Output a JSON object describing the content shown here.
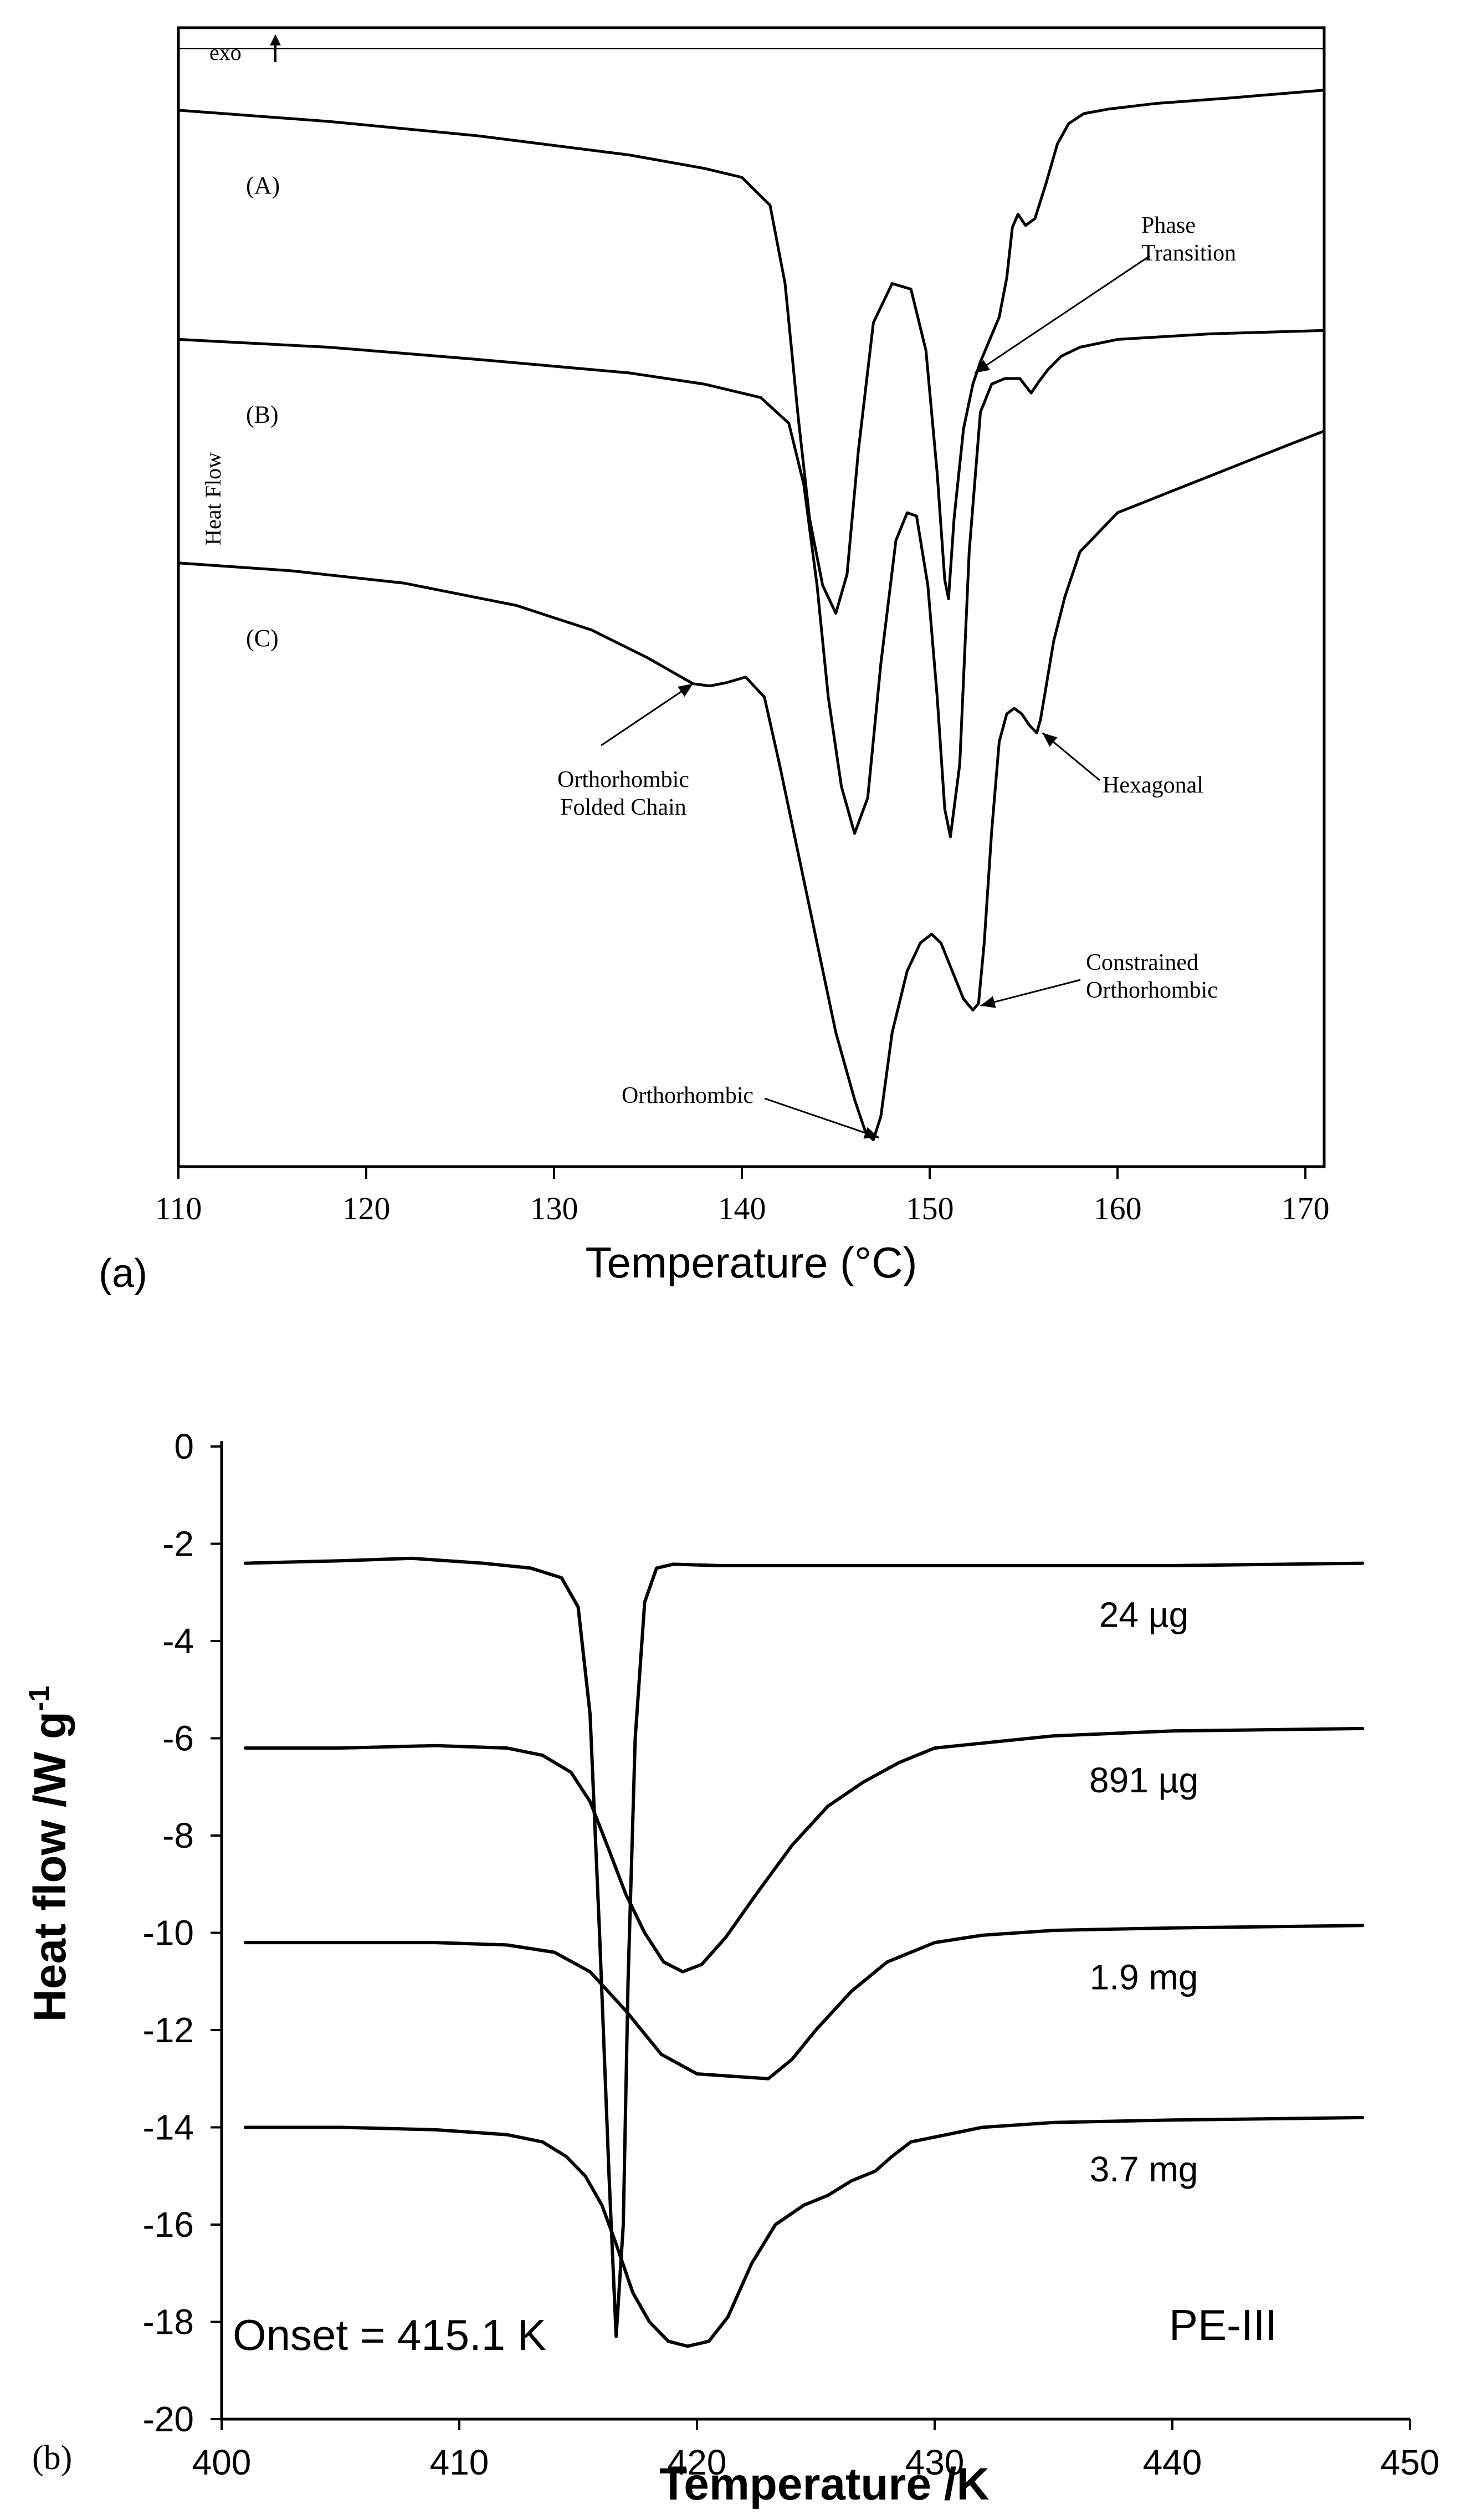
{
  "chart_data": [
    {
      "panel_label": "(a)",
      "type": "line",
      "xlabel": "Temperature (°C)",
      "ylabel": "Heat Flow",
      "direction_label": "exo",
      "xlim": [
        110,
        171
      ],
      "ylim": [
        0,
        100
      ],
      "xticks": [
        110,
        120,
        130,
        140,
        150,
        160,
        170
      ],
      "grid": false,
      "series": [
        {
          "name": "(A)",
          "x": [
            110,
            118,
            126,
            134,
            138,
            140,
            141.5,
            142.3,
            143,
            143.6,
            144.3,
            145,
            145.6,
            146.2,
            147,
            148,
            149,
            149.8,
            150.4,
            150.8,
            151,
            151.3,
            151.8,
            152.3,
            152.7,
            153.2,
            153.7,
            154.1,
            154.4,
            154.7,
            155.1,
            155.6,
            156.2,
            156.8,
            157.4,
            158.2,
            159.5,
            162,
            166,
            171
          ],
          "y": [
            94.5,
            93.5,
            92.2,
            90.5,
            89.3,
            88.5,
            86.0,
            79.0,
            67.0,
            58.0,
            52.0,
            49.5,
            53.0,
            64.0,
            75.5,
            79.0,
            78.5,
            73.0,
            62.0,
            52.5,
            50.8,
            58.0,
            66.0,
            70.0,
            72.0,
            74.0,
            76.0,
            79.5,
            84.0,
            85.2,
            84.2,
            84.8,
            88.0,
            91.5,
            93.3,
            94.2,
            94.6,
            95.1,
            95.6,
            96.3
          ]
        },
        {
          "name": "(B)",
          "x": [
            110,
            118,
            126,
            134,
            138,
            141,
            142.5,
            143.3,
            144,
            144.6,
            145.3,
            146,
            146.7,
            147.4,
            148.2,
            148.8,
            149.3,
            149.9,
            150.4,
            150.8,
            151.1,
            151.6,
            152.1,
            152.7,
            153.3,
            154,
            154.8,
            155.4,
            155.8,
            156.3,
            157,
            158,
            160,
            165,
            171
          ],
          "y": [
            74.0,
            73.3,
            72.2,
            71.0,
            70.0,
            68.8,
            66.5,
            61.0,
            52.0,
            42.0,
            34.0,
            29.8,
            33.0,
            45.0,
            56.0,
            58.5,
            58.2,
            52.0,
            42.0,
            32.0,
            29.5,
            36.0,
            55.0,
            67.5,
            70.0,
            70.5,
            70.5,
            69.2,
            70.2,
            71.3,
            72.5,
            73.3,
            74.0,
            74.5,
            74.8
          ]
        },
        {
          "name": "(C)",
          "x": [
            110,
            116,
            122,
            128,
            132,
            135,
            137.4,
            138.3,
            139.2,
            140.2,
            141.2,
            142,
            143,
            144,
            145,
            146,
            146.6,
            147,
            147.4,
            148,
            148.8,
            149.5,
            150.1,
            150.6,
            151.2,
            151.8,
            152.3,
            152.6,
            152.9,
            153.3,
            153.7,
            154.1,
            154.5,
            154.9,
            155.3,
            155.7,
            155.9,
            156.1,
            156.6,
            157.2,
            158,
            160,
            163,
            166,
            169,
            171
          ],
          "y": [
            54.0,
            53.3,
            52.2,
            50.2,
            48.0,
            45.5,
            43.2,
            43.0,
            43.3,
            43.8,
            42.0,
            36.0,
            28.0,
            20.0,
            12.0,
            6.0,
            3.0,
            2.4,
            4.5,
            12.0,
            17.5,
            20.0,
            20.8,
            20.0,
            17.5,
            15.0,
            14.0,
            14.6,
            20.0,
            30.0,
            38.0,
            40.5,
            41.0,
            40.5,
            39.5,
            38.8,
            40.0,
            42.0,
            47.0,
            51.0,
            55.0,
            58.5,
            60.5,
            62.5,
            64.5,
            65.8
          ]
        }
      ],
      "annotations": [
        {
          "text_lines": [
            "Phase",
            "Transition"
          ],
          "target": [
            152.4,
            71.0
          ]
        },
        {
          "text_lines": [
            "Hexagonal"
          ],
          "target": [
            156.0,
            38.8
          ]
        },
        {
          "text_lines": [
            "Orthorhombic",
            "Folded Chain"
          ],
          "target": [
            137.4,
            43.2
          ]
        },
        {
          "text_lines": [
            "Constrained",
            "Orthorhombic"
          ],
          "target": [
            152.7,
            14.4
          ]
        },
        {
          "text_lines": [
            "Orthorhombic"
          ],
          "target": [
            147.3,
            2.6
          ]
        }
      ]
    },
    {
      "panel_label": "(b)",
      "type": "line",
      "xlabel": "Temperature /K",
      "ylabel": "Heat flow /W g",
      "ylabel_superscript": "-1",
      "xlim": [
        400,
        450
      ],
      "ylim": [
        -20,
        0
      ],
      "xticks": [
        400,
        410,
        420,
        430,
        440,
        450
      ],
      "yticks": [
        0,
        -2,
        -4,
        -6,
        -8,
        -10,
        -12,
        -14,
        -16,
        -18,
        -20
      ],
      "grid": false,
      "annotation_text": "Onset = 415.1 K",
      "sample_label": "PE-III",
      "series": [
        {
          "name": "24 µg",
          "x": [
            401,
            405,
            408,
            411,
            413,
            414.3,
            415,
            415.5,
            415.9,
            416.3,
            416.6,
            416.9,
            417.1,
            417.4,
            417.8,
            418.3,
            419,
            421,
            425,
            430,
            440,
            448
          ],
          "y": [
            -2.4,
            -2.35,
            -2.3,
            -2.4,
            -2.5,
            -2.7,
            -3.3,
            -5.5,
            -10.0,
            -15.0,
            -18.3,
            -16.0,
            -11.0,
            -6.0,
            -3.2,
            -2.5,
            -2.42,
            -2.45,
            -2.45,
            -2.45,
            -2.45,
            -2.4
          ]
        },
        {
          "name": "891 µg",
          "x": [
            401,
            405,
            409,
            412,
            413.5,
            414.7,
            415.5,
            416.3,
            417,
            417.8,
            418.6,
            419.4,
            420.2,
            421.2,
            422.5,
            424,
            425.5,
            427,
            428.5,
            430,
            432,
            435,
            440,
            448
          ],
          "y": [
            -6.2,
            -6.2,
            -6.15,
            -6.2,
            -6.35,
            -6.7,
            -7.3,
            -8.3,
            -9.2,
            -10.0,
            -10.6,
            -10.8,
            -10.65,
            -10.1,
            -9.2,
            -8.2,
            -7.4,
            -6.9,
            -6.5,
            -6.2,
            -6.1,
            -5.95,
            -5.85,
            -5.8
          ]
        },
        {
          "name": "1.9 mg",
          "x": [
            401,
            405,
            409,
            412,
            414,
            415.5,
            417,
            418.5,
            420,
            421.5,
            423,
            424,
            425,
            426.5,
            428,
            430,
            432,
            435,
            440,
            448
          ],
          "y": [
            -10.2,
            -10.2,
            -10.2,
            -10.25,
            -10.4,
            -10.8,
            -11.6,
            -12.5,
            -12.9,
            -12.95,
            -13.0,
            -12.6,
            -12.0,
            -11.2,
            -10.6,
            -10.2,
            -10.05,
            -9.95,
            -9.9,
            -9.85
          ]
        },
        {
          "name": "3.7 mg",
          "x": [
            401,
            405,
            409,
            412,
            413.5,
            414.5,
            415.3,
            416,
            416.6,
            417.3,
            418,
            418.8,
            419.6,
            420.5,
            421.3,
            422.3,
            423.3,
            424.5,
            425.5,
            426.5,
            427.5,
            428.2,
            429,
            430,
            432,
            435,
            440,
            448
          ],
          "y": [
            -14.0,
            -14.0,
            -14.05,
            -14.15,
            -14.3,
            -14.6,
            -15.0,
            -15.6,
            -16.4,
            -17.4,
            -18.0,
            -18.4,
            -18.5,
            -18.4,
            -17.9,
            -16.8,
            -16.0,
            -15.6,
            -15.4,
            -15.1,
            -14.9,
            -14.6,
            -14.3,
            -14.2,
            -14.0,
            -13.9,
            -13.85,
            -13.8
          ]
        }
      ]
    }
  ]
}
